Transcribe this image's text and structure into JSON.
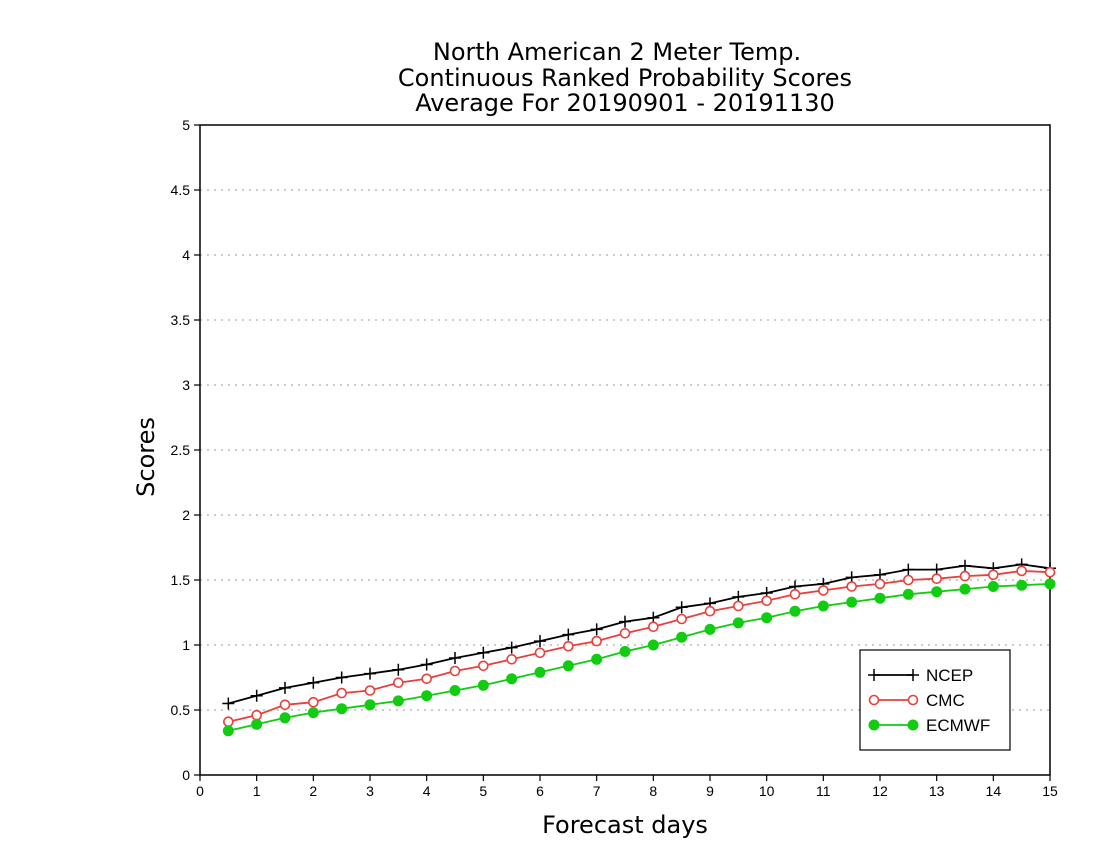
{
  "chart_data": {
    "type": "line",
    "title": [
      "North American 2 Meter Temp.",
      "Continuous Ranked Probability Scores",
      "Average For 20190901 - 20191130"
    ],
    "xlabel": "Forecast days",
    "ylabel": "Scores",
    "xlim": [
      0,
      15
    ],
    "ylim": [
      0,
      5
    ],
    "xticks": [
      "0",
      "1",
      "2",
      "3",
      "4",
      "5",
      "6",
      "7",
      "8",
      "9",
      "10",
      "11",
      "12",
      "13",
      "14",
      "15"
    ],
    "yticks": [
      "0",
      "0.5",
      "1",
      "1.5",
      "2",
      "2.5",
      "3",
      "3.5",
      "4",
      "4.5",
      "5"
    ],
    "grid": "horizontal dotted",
    "legend_position": "bottom-right",
    "x": [
      0.5,
      1,
      1.5,
      2,
      2.5,
      3,
      3.5,
      4,
      4.5,
      5,
      5.5,
      6,
      6.5,
      7,
      7.5,
      8,
      8.5,
      9,
      9.5,
      10,
      10.5,
      11,
      11.5,
      12,
      12.5,
      13,
      13.5,
      14,
      14.5,
      15
    ],
    "series": [
      {
        "name": "NCEP",
        "color": "#000000",
        "marker": "plus",
        "values": [
          0.55,
          0.61,
          0.67,
          0.71,
          0.75,
          0.78,
          0.81,
          0.85,
          0.9,
          0.94,
          0.98,
          1.03,
          1.08,
          1.12,
          1.18,
          1.21,
          1.29,
          1.32,
          1.37,
          1.4,
          1.45,
          1.47,
          1.52,
          1.54,
          1.58,
          1.58,
          1.61,
          1.59,
          1.62,
          1.59
        ]
      },
      {
        "name": "CMC",
        "color": "#e8403c",
        "marker": "open-circle",
        "values": [
          0.41,
          0.46,
          0.54,
          0.56,
          0.63,
          0.65,
          0.71,
          0.74,
          0.8,
          0.84,
          0.89,
          0.94,
          0.99,
          1.03,
          1.09,
          1.14,
          1.2,
          1.26,
          1.3,
          1.34,
          1.39,
          1.42,
          1.45,
          1.47,
          1.5,
          1.51,
          1.53,
          1.54,
          1.57,
          1.56
        ]
      },
      {
        "name": "ECMWF",
        "color": "#11cc11",
        "marker": "filled-circle",
        "values": [
          0.34,
          0.39,
          0.44,
          0.48,
          0.51,
          0.54,
          0.57,
          0.61,
          0.65,
          0.69,
          0.74,
          0.79,
          0.84,
          0.89,
          0.95,
          1.0,
          1.06,
          1.12,
          1.17,
          1.21,
          1.26,
          1.3,
          1.33,
          1.36,
          1.39,
          1.41,
          1.43,
          1.45,
          1.46,
          1.47
        ]
      }
    ]
  }
}
